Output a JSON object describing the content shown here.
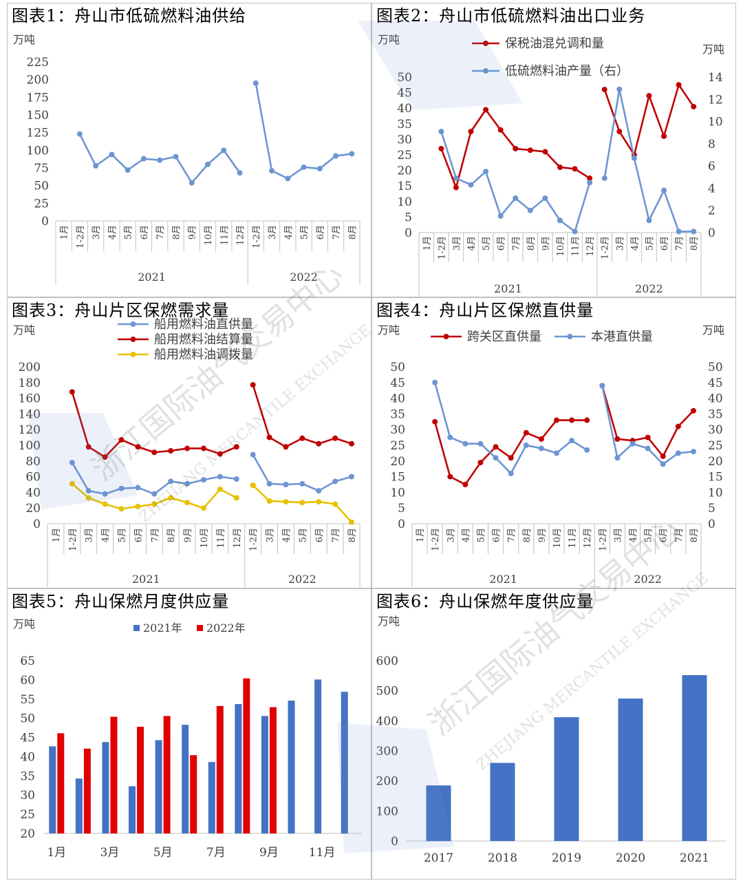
{
  "charts": [
    {
      "id": "c1",
      "title": "图表1：舟山市低硫燃料油供给"
    },
    {
      "id": "c2",
      "title": "图表2：舟山市低硫燃料油出口业务"
    },
    {
      "id": "c3",
      "title": "图表3：舟山片区保燃需求量"
    },
    {
      "id": "c4",
      "title": "图表4：舟山片区保燃直供量"
    },
    {
      "id": "c5",
      "title": "图表5：舟山保燃月度供应量"
    },
    {
      "id": "c6",
      "title": "图表6：舟山保燃年度供应量"
    }
  ],
  "watermark": {
    "cn": "浙江国际油气交易中心",
    "en": "ZHEJIANG MERCANTILE EXCHANGE"
  },
  "chart_data": [
    {
      "type": "line",
      "title": "图表1：舟山市低硫燃料油供给",
      "ylabel": "万吨",
      "ylim": [
        0,
        225
      ],
      "yticks": [
        0,
        25,
        50,
        75,
        100,
        125,
        150,
        175,
        200,
        225
      ],
      "categories": [
        "1月",
        "1-2月",
        "3月",
        "4月",
        "5月",
        "6月",
        "7月",
        "8月",
        "9月",
        "10月",
        "11月",
        "12月",
        "1-2月",
        "3月",
        "4月",
        "5月",
        "6月",
        "7月",
        "8月"
      ],
      "groups": [
        {
          "label": "2021",
          "from": 0,
          "to": 11
        },
        {
          "label": "2022",
          "from": 12,
          "to": 18
        }
      ],
      "series": [
        {
          "values": [
            null,
            123,
            78,
            94,
            72,
            88,
            86,
            91,
            54,
            80,
            100,
            68,
            195,
            71,
            60,
            76,
            74,
            92,
            95
          ],
          "color": "#6d95d2"
        }
      ]
    },
    {
      "type": "line",
      "title": "图表2：舟山市低硫燃料油出口业务",
      "ylabel": "万吨",
      "ylabel_right": "万吨",
      "ylim": [
        0,
        50
      ],
      "ylim_right": [
        0,
        14
      ],
      "yticks": [
        0,
        5,
        10,
        15,
        20,
        25,
        30,
        35,
        40,
        45,
        50
      ],
      "yticks_right": [
        0,
        2,
        4,
        6,
        8,
        10,
        12,
        14
      ],
      "categories": [
        "1月",
        "1-2月",
        "3月",
        "4月",
        "5月",
        "6月",
        "7月",
        "8月",
        "9月",
        "10月",
        "11月",
        "12月",
        "1-2月",
        "3月",
        "4月",
        "5月",
        "6月",
        "7月",
        "8月"
      ],
      "groups": [
        {
          "label": "2021",
          "from": 0,
          "to": 11
        },
        {
          "label": "2022",
          "from": 12,
          "to": 18
        }
      ],
      "legend": "top",
      "series": [
        {
          "name": "保税油混兑调和量",
          "axis": "left",
          "color": "#c00000",
          "values": [
            null,
            27,
            14.5,
            32.5,
            39.5,
            33,
            27,
            26.5,
            26,
            21,
            20.5,
            17.5,
            46,
            32.5,
            25,
            44,
            31,
            47.5,
            40.5
          ]
        },
        {
          "name": "低硫燃料油产量（右）",
          "axis": "right",
          "color": "#6d95d2",
          "values": [
            null,
            9.1,
            4.9,
            4.3,
            5.5,
            1.5,
            3.1,
            2,
            3.1,
            1.1,
            0.1,
            4.5,
            4.9,
            12.9,
            6.7,
            1.1,
            3.8,
            0.1,
            0.1
          ]
        }
      ]
    },
    {
      "type": "line",
      "title": "图表3：舟山片区保燃需求量",
      "ylabel": "万吨",
      "ylim": [
        0,
        200
      ],
      "yticks": [
        0,
        20,
        40,
        60,
        80,
        100,
        120,
        140,
        160,
        180,
        200
      ],
      "categories": [
        "1月",
        "1-2月",
        "3月",
        "4月",
        "5月",
        "6月",
        "7月",
        "8月",
        "9月",
        "10月",
        "11月",
        "12月",
        "1-2月",
        "3月",
        "4月",
        "5月",
        "6月",
        "7月",
        "8月"
      ],
      "groups": [
        {
          "label": "2021",
          "from": 0,
          "to": 11
        },
        {
          "label": "2022",
          "from": 12,
          "to": 18
        }
      ],
      "legend": "top",
      "series": [
        {
          "name": "船用燃料油直供量",
          "color": "#6d95d2",
          "values": [
            null,
            78,
            42,
            38,
            45,
            46,
            38,
            54,
            51,
            56,
            60,
            57,
            88,
            51,
            50,
            51,
            42,
            54,
            60
          ]
        },
        {
          "name": "船用燃料油结算量",
          "color": "#c00000",
          "values": [
            null,
            168,
            98,
            85,
            107,
            98,
            91,
            93,
            96,
            96,
            89,
            98,
            177,
            110,
            98,
            109,
            102,
            109,
            102
          ]
        },
        {
          "name": "船用燃料油调拨量",
          "color": "#e6c100",
          "values": [
            null,
            51,
            33,
            25,
            19,
            22,
            25,
            33,
            27,
            20,
            44,
            33,
            49,
            29,
            28,
            27,
            28,
            25,
            2
          ]
        }
      ]
    },
    {
      "type": "line",
      "title": "图表4：舟山片区保燃直供量",
      "ylabel": "万吨",
      "ylabel_right": "万吨",
      "ylim": [
        0,
        50
      ],
      "ylim_right": [
        0,
        50
      ],
      "yticks": [
        0,
        5,
        10,
        15,
        20,
        25,
        30,
        35,
        40,
        45,
        50
      ],
      "yticks_right": [
        0,
        5,
        10,
        15,
        20,
        25,
        30,
        35,
        40,
        45,
        50
      ],
      "categories": [
        "1月",
        "1-2月",
        "3月",
        "4月",
        "5月",
        "6月",
        "7月",
        "8月",
        "9月",
        "10月",
        "11月",
        "12月",
        "1-2月",
        "3月",
        "4月",
        "5月",
        "6月",
        "7月",
        "8月"
      ],
      "groups": [
        {
          "label": "2021",
          "from": 0,
          "to": 11
        },
        {
          "label": "2022",
          "from": 12,
          "to": 18
        }
      ],
      "legend": "top",
      "series": [
        {
          "name": "跨关区直供量",
          "color": "#c00000",
          "values": [
            null,
            32.5,
            15,
            12.5,
            19.5,
            24.5,
            21,
            29,
            27,
            33,
            33,
            33,
            44,
            27,
            26.5,
            27.5,
            21.5,
            31,
            36
          ]
        },
        {
          "name": "本港直供量",
          "color": "#6d95d2",
          "values": [
            null,
            45,
            27.5,
            25.5,
            25.5,
            21,
            16,
            25,
            24,
            22.5,
            26.5,
            23.5,
            44,
            21,
            25.5,
            24,
            19,
            22.5,
            23
          ]
        }
      ]
    },
    {
      "type": "bar",
      "title": "图表5：舟山保燃月度供应量",
      "ylabel": "万吨",
      "ylim": [
        20,
        65
      ],
      "yticks": [
        20,
        25,
        30,
        35,
        40,
        45,
        50,
        55,
        60,
        65
      ],
      "categories": [
        "1月",
        "2月",
        "3月",
        "4月",
        "5月",
        "6月",
        "7月",
        "8月",
        "9月",
        "10月",
        "11月",
        "12月"
      ],
      "tick_labels": [
        "1月",
        "",
        "3月",
        "",
        "5月",
        "",
        "7月",
        "",
        "9月",
        "",
        "11月",
        ""
      ],
      "legend": "top",
      "series": [
        {
          "name": "2021年",
          "color": "#4472c4",
          "values": [
            42.7,
            34.3,
            43.8,
            32.3,
            44.3,
            48.3,
            38.6,
            53.7,
            50.6,
            54.6,
            60.1,
            56.9
          ]
        },
        {
          "name": "2022年",
          "color": "#e00000",
          "values": [
            46.1,
            42.1,
            50.4,
            47.8,
            50.6,
            40.4,
            53.2,
            60.4,
            52.9,
            null,
            null,
            null
          ]
        }
      ]
    },
    {
      "type": "bar",
      "title": "图表6：舟山保燃年度供应量",
      "ylabel": "万吨",
      "ylim": [
        0,
        600
      ],
      "yticks": [
        0,
        100,
        200,
        300,
        400,
        500,
        600
      ],
      "categories": [
        "2017",
        "2018",
        "2019",
        "2020",
        "2021"
      ],
      "series": [
        {
          "color": "#4472c4",
          "values": [
            185,
            260,
            412,
            474,
            552
          ]
        }
      ]
    }
  ]
}
